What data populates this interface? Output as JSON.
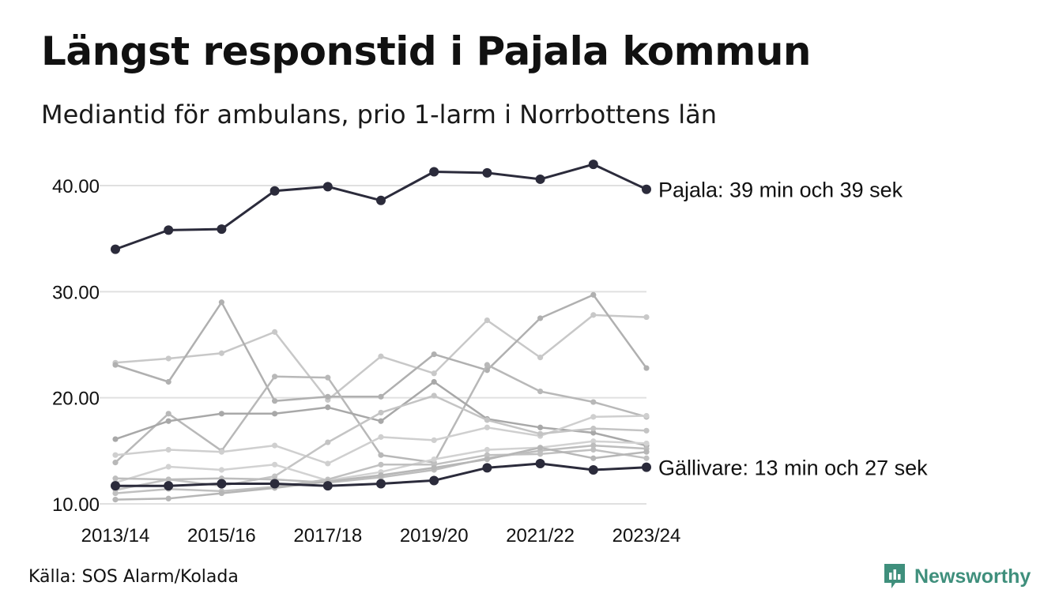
{
  "title": "Längst responstid i Pajala kommun",
  "subtitle": "Mediantid för ambulans, prio 1-larm i Norrbottens län",
  "source": "Källa: SOS Alarm/Kolada",
  "brand": {
    "name": "Newsworthy",
    "icon": "newsworthy-chart-bubble-icon",
    "color": "#3f8f7c"
  },
  "colors": {
    "highlight": "#2b2b3b",
    "other_series": "#b4b4b4",
    "grid": "#e0e0e0"
  },
  "chart_data": {
    "type": "line",
    "x": [
      "2013/14",
      "2014/15",
      "2015/16",
      "2016/17",
      "2017/18",
      "2018/19",
      "2019/20",
      "2020/21",
      "2021/22",
      "2022/23",
      "2023/24"
    ],
    "x_tick_labels": [
      "2013/14",
      "2015/16",
      "2017/18",
      "2019/20",
      "2021/22",
      "2023/24"
    ],
    "y_ticks": [
      "10.00",
      "20.00",
      "30.00",
      "40.00"
    ],
    "ylim": [
      10,
      42
    ],
    "grid": "horizontal",
    "legend": "none",
    "highlighted": [
      {
        "values": [
          34.0,
          35.8,
          35.9,
          39.5,
          39.9,
          38.6,
          41.3,
          41.2,
          40.6,
          42.0,
          39.65
        ],
        "label": "Pajala: 39 min och 39 sek"
      },
      {
        "values": [
          11.7,
          11.7,
          11.9,
          11.9,
          11.7,
          11.9,
          12.2,
          13.4,
          13.8,
          13.2,
          13.45
        ],
        "label": "Gällivare: 13 min och 27 sek"
      }
    ],
    "series": [
      {
        "values": [
          23.3,
          23.7,
          24.2,
          26.2,
          19.8,
          23.9,
          22.3,
          27.3,
          23.8,
          27.8,
          27.6
        ]
      },
      {
        "values": [
          23.1,
          21.5,
          29.0,
          19.7,
          20.1,
          20.1,
          24.1,
          22.6,
          27.5,
          29.7,
          22.8
        ]
      },
      {
        "values": [
          13.9,
          18.5,
          15.0,
          22.0,
          21.9,
          14.6,
          13.9,
          23.1,
          20.6,
          19.6,
          18.2
        ]
      },
      {
        "values": [
          16.1,
          17.8,
          18.5,
          18.5,
          19.1,
          17.8,
          21.5,
          18.0,
          17.2,
          16.7,
          15.5
        ]
      },
      {
        "values": [
          14.6,
          15.1,
          14.9,
          15.5,
          13.8,
          16.3,
          16.0,
          17.2,
          16.4,
          18.2,
          18.3
        ]
      },
      {
        "values": [
          11.3,
          12.3,
          11.7,
          12.6,
          15.8,
          18.6,
          20.2,
          17.9,
          16.6,
          17.1,
          16.9
        ]
      },
      {
        "values": [
          12.0,
          13.5,
          13.2,
          13.7,
          12.2,
          13.0,
          14.2,
          15.1,
          15.3,
          15.9,
          15.7
        ]
      },
      {
        "values": [
          12.4,
          12.3,
          12.4,
          12.3,
          12.0,
          12.5,
          13.2,
          14.3,
          15.0,
          15.5,
          15.2
        ]
      },
      {
        "values": [
          11.0,
          11.4,
          11.2,
          11.6,
          12.3,
          13.7,
          13.7,
          14.6,
          14.7,
          15.1,
          14.3
        ]
      },
      {
        "values": [
          10.4,
          10.5,
          11.0,
          11.5,
          12.1,
          12.7,
          13.4,
          14.2,
          15.3,
          14.3,
          14.9
        ]
      }
    ]
  }
}
